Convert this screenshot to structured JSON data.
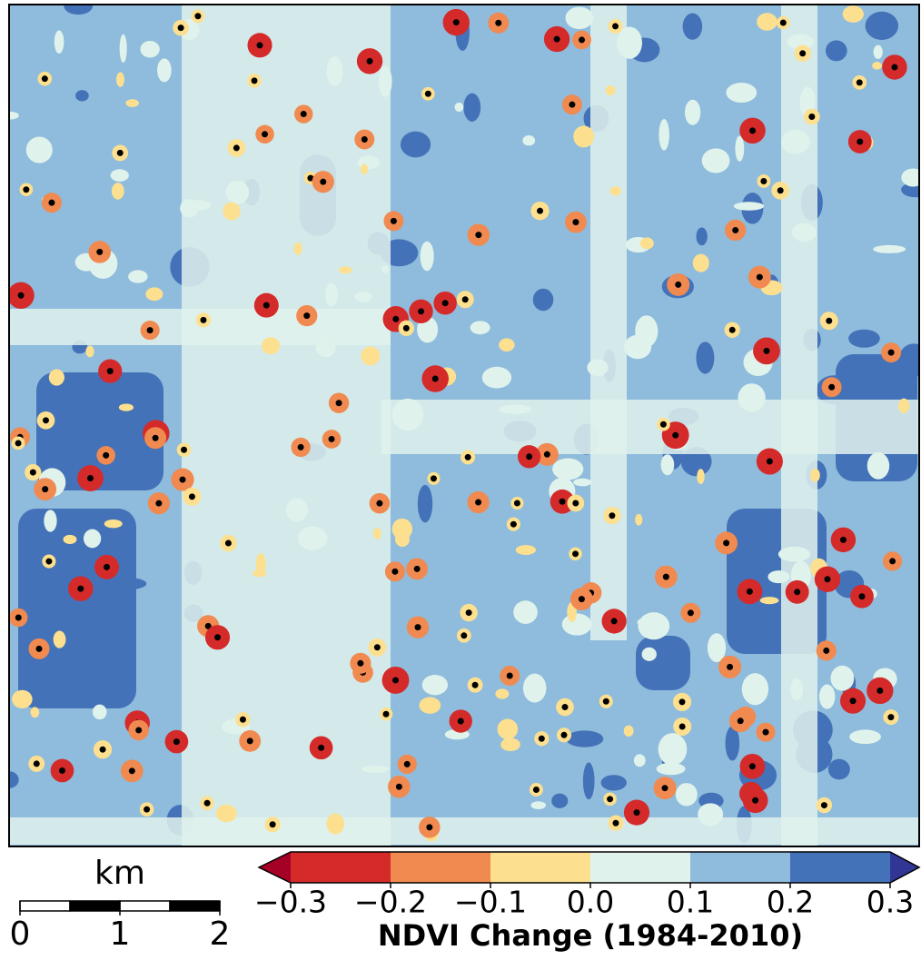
{
  "colorbar": {
    "label": "NDVI Change (1984-2010)",
    "ticks": [
      {
        "value": -0.3,
        "label": "−0.3"
      },
      {
        "value": -0.2,
        "label": "−0.2"
      },
      {
        "value": -0.1,
        "label": "−0.1"
      },
      {
        "value": 0,
        "label": "0.0"
      },
      0.1,
      0.2,
      0.3
    ],
    "colors": [
      "#d42a2a",
      "#f08a50",
      "#fde08f",
      "#e0f2ec",
      "#8fbcdc",
      "#4472b8"
    ],
    "extend_colors": [
      "#a50026",
      "#313695"
    ]
  },
  "scale_bar": {
    "unit": "km",
    "ticks": [
      0,
      1,
      2
    ]
  }
}
